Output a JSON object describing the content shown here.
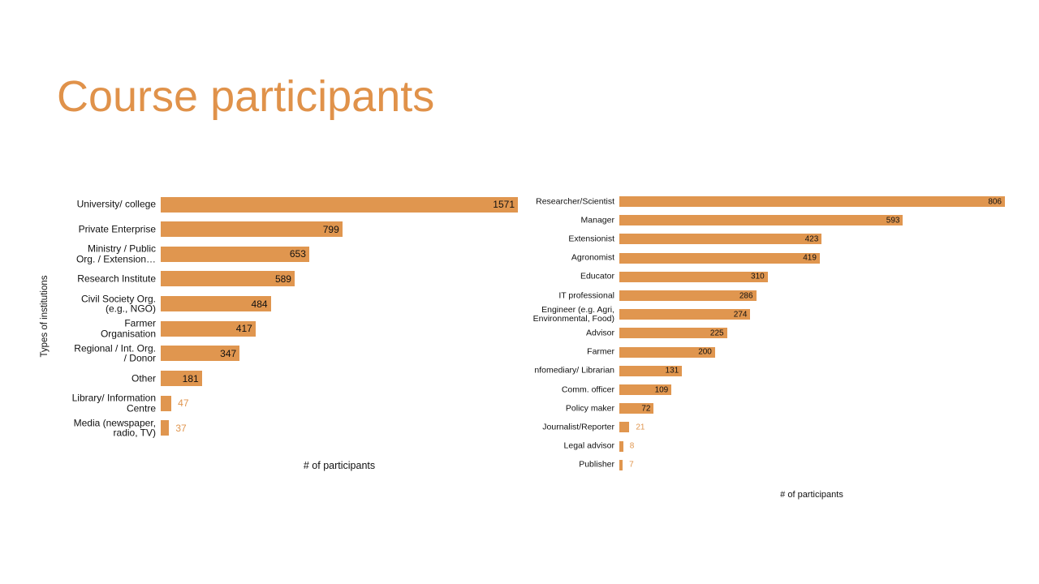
{
  "title": "Course participants",
  "chart_data": [
    {
      "type": "bar",
      "orientation": "horizontal",
      "y_label": "Types of institutions",
      "x_label": "# of participants",
      "color": "#e0964f",
      "categories": [
        "University/ college",
        "Private Enterprise",
        "Ministry / Public\nOrg. / Extension…",
        "Research Institute",
        "Civil Society Org.\n(e.g., NGO)",
        "Farmer\nOrganisation",
        "Regional / Int. Org.\n/ Donor",
        "Other",
        "Library/ Information\nCentre",
        "Media (newspaper,\nradio, TV)"
      ],
      "values": [
        1571,
        799,
        653,
        589,
        484,
        417,
        347,
        181,
        47,
        37
      ]
    },
    {
      "type": "bar",
      "orientation": "horizontal",
      "x_label": "# of participants",
      "color": "#e0964f",
      "categories": [
        "Researcher/Scientist",
        "Manager",
        "Extensionist",
        "Agronomist",
        "Educator",
        "IT professional",
        "Engineer (e.g. Agri,\nEnvironmental, Food)",
        "Advisor",
        "Farmer",
        "nfomediary/ Librarian",
        "Comm. officer",
        "Policy maker",
        "Journalist/Reporter",
        "Legal advisor",
        "Publisher"
      ],
      "values": [
        806,
        593,
        423,
        419,
        310,
        286,
        274,
        225,
        200,
        131,
        109,
        72,
        21,
        8,
        7
      ]
    }
  ]
}
